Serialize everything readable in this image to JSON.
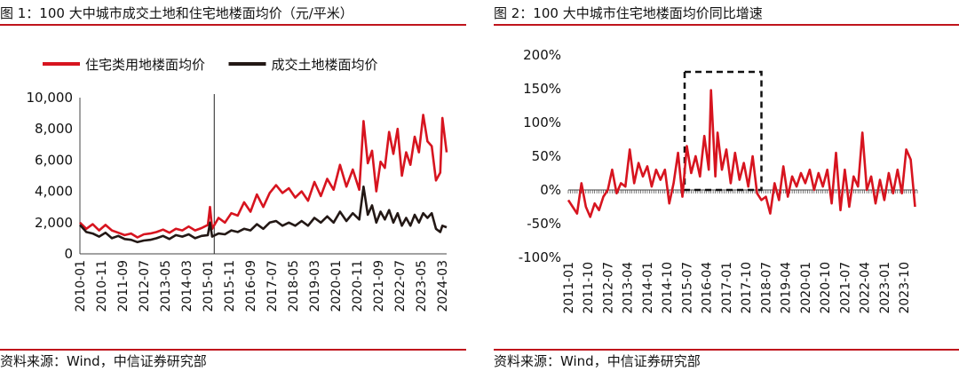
{
  "chart_data": [
    {
      "type": "line",
      "title": "图 1：100 大中城市成交土地和住宅地楼面均价（元/平米）",
      "source": "资料来源：Wind，中信证券研究部",
      "ylim": [
        0,
        10000
      ],
      "yticks": [
        "0",
        "2,000",
        "4,000",
        "6,000",
        "8,000",
        "10,000"
      ],
      "ytick_values": [
        0,
        2000,
        4000,
        6000,
        8000,
        10000
      ],
      "xlim": [
        "2010-01",
        "2024-05"
      ],
      "xticks": [
        "2010-01",
        "2010-11",
        "2011-09",
        "2012-07",
        "2013-05",
        "2014-03",
        "2015-01",
        "2015-11",
        "2016-09",
        "2017-07",
        "2018-05",
        "2019-03",
        "2020-01",
        "2020-11",
        "2021-09",
        "2022-07",
        "2023-05",
        "2024-03"
      ],
      "legend_position": "top",
      "reference_line_x": "2015-04",
      "series": [
        {
          "name": "住宅类用地楼面均价",
          "color": "#d7141f",
          "points": [
            [
              "2010-01",
              2000
            ],
            [
              "2010-04",
              1600
            ],
            [
              "2010-07",
              1900
            ],
            [
              "2010-10",
              1500
            ],
            [
              "2011-01",
              1850
            ],
            [
              "2011-04",
              1500
            ],
            [
              "2011-07",
              1350
            ],
            [
              "2011-10",
              1200
            ],
            [
              "2012-01",
              1300
            ],
            [
              "2012-04",
              1050
            ],
            [
              "2012-07",
              1250
            ],
            [
              "2012-10",
              1300
            ],
            [
              "2013-01",
              1400
            ],
            [
              "2013-04",
              1550
            ],
            [
              "2013-07",
              1350
            ],
            [
              "2013-10",
              1600
            ],
            [
              "2014-01",
              1500
            ],
            [
              "2014-04",
              1750
            ],
            [
              "2014-07",
              1500
            ],
            [
              "2014-10",
              1650
            ],
            [
              "2015-01",
              1850
            ],
            [
              "2015-02",
              3000
            ],
            [
              "2015-03",
              1600
            ],
            [
              "2015-06",
              2300
            ],
            [
              "2015-09",
              2000
            ],
            [
              "2015-12",
              2600
            ],
            [
              "2016-03",
              2450
            ],
            [
              "2016-06",
              3300
            ],
            [
              "2016-09",
              2700
            ],
            [
              "2016-12",
              3800
            ],
            [
              "2017-03",
              3000
            ],
            [
              "2017-06",
              3900
            ],
            [
              "2017-09",
              4400
            ],
            [
              "2017-12",
              3900
            ],
            [
              "2018-03",
              4200
            ],
            [
              "2018-06",
              3600
            ],
            [
              "2018-09",
              4000
            ],
            [
              "2018-12",
              3400
            ],
            [
              "2019-03",
              4600
            ],
            [
              "2019-06",
              3700
            ],
            [
              "2019-09",
              4800
            ],
            [
              "2019-12",
              4100
            ],
            [
              "2020-03",
              5700
            ],
            [
              "2020-06",
              4300
            ],
            [
              "2020-09",
              5400
            ],
            [
              "2020-12",
              4100
            ],
            [
              "2021-02",
              8500
            ],
            [
              "2021-04",
              5800
            ],
            [
              "2021-06",
              6600
            ],
            [
              "2021-08",
              4000
            ],
            [
              "2021-10",
              5900
            ],
            [
              "2021-12",
              5500
            ],
            [
              "2022-02",
              7800
            ],
            [
              "2022-04",
              6400
            ],
            [
              "2022-06",
              8000
            ],
            [
              "2022-08",
              5000
            ],
            [
              "2022-10",
              6500
            ],
            [
              "2022-12",
              5700
            ],
            [
              "2023-02",
              7500
            ],
            [
              "2023-04",
              6500
            ],
            [
              "2023-06",
              8900
            ],
            [
              "2023-08",
              7200
            ],
            [
              "2023-10",
              6900
            ],
            [
              "2023-12",
              4700
            ],
            [
              "2024-02",
              5200
            ],
            [
              "2024-03",
              8700
            ],
            [
              "2024-05",
              6500
            ]
          ]
        },
        {
          "name": "成交土地楼面均价",
          "color": "#231815",
          "points": [
            [
              "2010-01",
              1850
            ],
            [
              "2010-04",
              1400
            ],
            [
              "2010-07",
              1300
            ],
            [
              "2010-10",
              1100
            ],
            [
              "2011-01",
              1350
            ],
            [
              "2011-04",
              1000
            ],
            [
              "2011-07",
              1150
            ],
            [
              "2011-10",
              950
            ],
            [
              "2012-01",
              900
            ],
            [
              "2012-04",
              750
            ],
            [
              "2012-07",
              850
            ],
            [
              "2012-10",
              900
            ],
            [
              "2013-01",
              1000
            ],
            [
              "2013-04",
              1150
            ],
            [
              "2013-07",
              950
            ],
            [
              "2013-10",
              1200
            ],
            [
              "2014-01",
              1100
            ],
            [
              "2014-04",
              1250
            ],
            [
              "2014-07",
              1000
            ],
            [
              "2014-10",
              1150
            ],
            [
              "2015-01",
              1200
            ],
            [
              "2015-02",
              2000
            ],
            [
              "2015-03",
              1100
            ],
            [
              "2015-06",
              1300
            ],
            [
              "2015-09",
              1250
            ],
            [
              "2015-12",
              1500
            ],
            [
              "2016-03",
              1400
            ],
            [
              "2016-06",
              1600
            ],
            [
              "2016-09",
              1500
            ],
            [
              "2016-12",
              1900
            ],
            [
              "2017-03",
              1600
            ],
            [
              "2017-06",
              2000
            ],
            [
              "2017-09",
              2100
            ],
            [
              "2017-12",
              1800
            ],
            [
              "2018-03",
              2000
            ],
            [
              "2018-06",
              1800
            ],
            [
              "2018-09",
              2100
            ],
            [
              "2018-12",
              1800
            ],
            [
              "2019-03",
              2300
            ],
            [
              "2019-06",
              2000
            ],
            [
              "2019-09",
              2400
            ],
            [
              "2019-12",
              2000
            ],
            [
              "2020-03",
              2700
            ],
            [
              "2020-06",
              2100
            ],
            [
              "2020-09",
              2600
            ],
            [
              "2020-12",
              2200
            ],
            [
              "2021-02",
              4300
            ],
            [
              "2021-04",
              2500
            ],
            [
              "2021-06",
              3100
            ],
            [
              "2021-08",
              2000
            ],
            [
              "2021-10",
              2700
            ],
            [
              "2021-12",
              2200
            ],
            [
              "2022-02",
              2800
            ],
            [
              "2022-04",
              2000
            ],
            [
              "2022-06",
              2600
            ],
            [
              "2022-08",
              1800
            ],
            [
              "2022-10",
              2300
            ],
            [
              "2022-12",
              1800
            ],
            [
              "2023-02",
              2500
            ],
            [
              "2023-04",
              2000
            ],
            [
              "2023-06",
              2600
            ],
            [
              "2023-08",
              2300
            ],
            [
              "2023-10",
              2600
            ],
            [
              "2023-12",
              1600
            ],
            [
              "2024-02",
              1400
            ],
            [
              "2024-03",
              1800
            ],
            [
              "2024-05",
              1700
            ]
          ]
        }
      ]
    },
    {
      "type": "line",
      "title": "图 2：100 大中城市住宅地楼面均价同比增速",
      "source": "资料来源：Wind，中信证券研究部",
      "ylim": [
        -100,
        200
      ],
      "yticks": [
        "-100%",
        "-50%",
        "0%",
        "50%",
        "100%",
        "150%",
        "200%"
      ],
      "ytick_values": [
        -100,
        -50,
        0,
        50,
        100,
        150,
        200
      ],
      "xlim": [
        "2011-01",
        "2024-04"
      ],
      "xticks": [
        "2011-01",
        "2011-10",
        "2012-07",
        "2013-04",
        "2014-01",
        "2014-10",
        "2015-07",
        "2016-04",
        "2017-01",
        "2017-10",
        "2018-07",
        "2019-04",
        "2020-01",
        "2020-10",
        "2021-07",
        "2022-04",
        "2023-01",
        "2023-10"
      ],
      "highlight_box": {
        "x_range": [
          "2015-06",
          "2018-05"
        ],
        "y_range": [
          0,
          175
        ]
      },
      "series": [
        {
          "name": "",
          "color": "#d7141f",
          "points": [
            [
              "2011-01",
              -15
            ],
            [
              "2011-03",
              -25
            ],
            [
              "2011-05",
              -35
            ],
            [
              "2011-07",
              10
            ],
            [
              "2011-09",
              -25
            ],
            [
              "2011-11",
              -40
            ],
            [
              "2012-01",
              -20
            ],
            [
              "2012-03",
              -30
            ],
            [
              "2012-05",
              -10
            ],
            [
              "2012-07",
              0
            ],
            [
              "2012-09",
              30
            ],
            [
              "2012-11",
              -5
            ],
            [
              "2013-01",
              10
            ],
            [
              "2013-03",
              5
            ],
            [
              "2013-05",
              60
            ],
            [
              "2013-07",
              10
            ],
            [
              "2013-09",
              40
            ],
            [
              "2013-11",
              20
            ],
            [
              "2014-01",
              35
            ],
            [
              "2014-03",
              5
            ],
            [
              "2014-05",
              30
            ],
            [
              "2014-07",
              15
            ],
            [
              "2014-09",
              30
            ],
            [
              "2014-11",
              -20
            ],
            [
              "2015-01",
              10
            ],
            [
              "2015-03",
              55
            ],
            [
              "2015-05",
              -10
            ],
            [
              "2015-07",
              65
            ],
            [
              "2015-09",
              25
            ],
            [
              "2015-11",
              50
            ],
            [
              "2016-01",
              20
            ],
            [
              "2016-03",
              80
            ],
            [
              "2016-05",
              30
            ],
            [
              "2016-06",
              148
            ],
            [
              "2016-08",
              20
            ],
            [
              "2016-09",
              85
            ],
            [
              "2016-11",
              30
            ],
            [
              "2017-01",
              60
            ],
            [
              "2017-03",
              10
            ],
            [
              "2017-05",
              55
            ],
            [
              "2017-07",
              15
            ],
            [
              "2017-09",
              40
            ],
            [
              "2017-11",
              5
            ],
            [
              "2018-01",
              50
            ],
            [
              "2018-03",
              -5
            ],
            [
              "2018-05",
              -15
            ],
            [
              "2018-07",
              -10
            ],
            [
              "2018-09",
              -35
            ],
            [
              "2018-11",
              10
            ],
            [
              "2019-01",
              -15
            ],
            [
              "2019-03",
              35
            ],
            [
              "2019-05",
              -10
            ],
            [
              "2019-07",
              20
            ],
            [
              "2019-09",
              5
            ],
            [
              "2019-11",
              25
            ],
            [
              "2020-01",
              10
            ],
            [
              "2020-03",
              30
            ],
            [
              "2020-05",
              0
            ],
            [
              "2020-07",
              25
            ],
            [
              "2020-09",
              5
            ],
            [
              "2020-11",
              30
            ],
            [
              "2021-01",
              -20
            ],
            [
              "2021-03",
              55
            ],
            [
              "2021-05",
              -30
            ],
            [
              "2021-07",
              30
            ],
            [
              "2021-09",
              -25
            ],
            [
              "2021-11",
              20
            ],
            [
              "2022-01",
              5
            ],
            [
              "2022-03",
              85
            ],
            [
              "2022-05",
              0
            ],
            [
              "2022-07",
              20
            ],
            [
              "2022-09",
              -20
            ],
            [
              "2022-11",
              15
            ],
            [
              "2023-01",
              -15
            ],
            [
              "2023-03",
              25
            ],
            [
              "2023-05",
              -5
            ],
            [
              "2023-07",
              30
            ],
            [
              "2023-09",
              -5
            ],
            [
              "2023-11",
              60
            ],
            [
              "2024-01",
              45
            ],
            [
              "2024-03",
              -25
            ]
          ]
        }
      ]
    }
  ]
}
